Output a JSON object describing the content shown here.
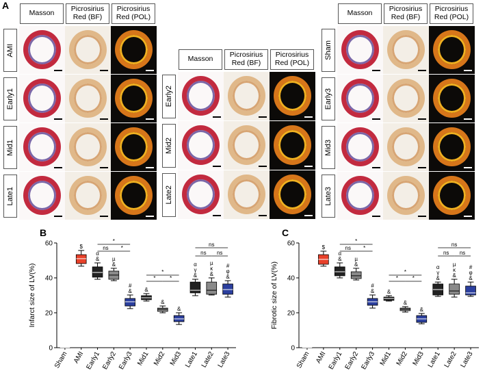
{
  "panel_a": {
    "label": "A",
    "groups": [
      {
        "columns": [
          "Masson",
          "Picrosirius Red (BF)",
          "Picrosirius Red (POL)"
        ],
        "rows": [
          "AMI",
          "Early1",
          "Mid1",
          "Late1"
        ]
      },
      {
        "columns": [
          "Masson",
          "Picrosirius Red (BF)",
          "Picrosirius Red (POL)"
        ],
        "rows": [
          "Early2",
          "Mid2",
          "Late2"
        ]
      },
      {
        "columns": [
          "Masson",
          "Picrosirius Red (BF)",
          "Picrosirius Red (POL)"
        ],
        "rows": [
          "Sham",
          "Early3",
          "Mid3",
          "Late3"
        ]
      }
    ]
  },
  "chart_data": [
    {
      "type": "box",
      "panel": "B",
      "ylabel": "Infarct size of LV(%)",
      "categories": [
        "Sham",
        "AMI",
        "Early1",
        "Early2",
        "Early3",
        "Mid1",
        "Mid2",
        "Mid3",
        "Late1",
        "Late2",
        "Late3"
      ],
      "colors": [
        "#000000",
        "#e8412a",
        "#222222",
        "#8a8a8a",
        "#2b3f9e",
        "#222222",
        "#8a8a8a",
        "#2b3f9e",
        "#222222",
        "#8a8a8a",
        "#2b3f9e"
      ],
      "boxes": [
        {
          "min": 0,
          "q1": 0,
          "median": 0,
          "q3": 0,
          "max": 0
        },
        {
          "min": 46.7,
          "q1": 48.2,
          "median": 51,
          "q3": 53.3,
          "max": 55.7
        },
        {
          "min": 39.2,
          "q1": 40.4,
          "median": 43.1,
          "q3": 46.3,
          "max": 48.6
        },
        {
          "min": 38.4,
          "q1": 39.2,
          "median": 41.6,
          "q3": 43.9,
          "max": 45.5
        },
        {
          "min": 22.4,
          "q1": 23.9,
          "median": 26.3,
          "q3": 28.2,
          "max": 30.2
        },
        {
          "min": 26.7,
          "q1": 27.5,
          "median": 28.6,
          "q3": 29.8,
          "max": 31
        },
        {
          "min": 20,
          "q1": 20.8,
          "median": 22,
          "q3": 22.7,
          "max": 23.9
        },
        {
          "min": 13.3,
          "q1": 14.9,
          "median": 16.5,
          "q3": 18.4,
          "max": 20
        },
        {
          "min": 29.8,
          "q1": 31.4,
          "median": 32.9,
          "q3": 37.6,
          "max": 39.2
        },
        {
          "min": 30.2,
          "q1": 30.6,
          "median": 32.9,
          "q3": 37.6,
          "max": 40
        },
        {
          "min": 29,
          "q1": 30.6,
          "median": 33.3,
          "q3": 36.5,
          "max": 38.4
        }
      ],
      "annotations": [
        [],
        [
          "$"
        ],
        [
          "α",
          "&"
        ],
        [
          "µ",
          "&"
        ],
        [
          "#",
          "&"
        ],
        [
          "&"
        ],
        [
          "&"
        ],
        [
          "&"
        ],
        [
          "α",
          "γ",
          "&"
        ],
        [
          "µ",
          "κ",
          "&"
        ],
        [
          "#",
          "φ",
          "&"
        ]
      ],
      "brackets": [
        "*",
        "ns",
        "*",
        "*",
        "*",
        "*",
        "ns",
        "ns",
        "ns"
      ],
      "ylim": [
        0,
        60
      ],
      "yticks": [
        0,
        20,
        40,
        60
      ]
    },
    {
      "type": "box",
      "panel": "C",
      "ylabel": "Fibrotic size of LV(%)",
      "categories": [
        "Sham",
        "AMI",
        "Early1",
        "Early2",
        "Early3",
        "Mid1",
        "Mid2",
        "Mid3",
        "Late1",
        "Late2",
        "Late3"
      ],
      "colors": [
        "#000000",
        "#e8412a",
        "#222222",
        "#8a8a8a",
        "#2b3f9e",
        "#222222",
        "#8a8a8a",
        "#2b3f9e",
        "#222222",
        "#8a8a8a",
        "#2b3f9e"
      ],
      "boxes": [
        {
          "min": 0,
          "q1": 0,
          "median": 0,
          "q3": 0,
          "max": 0
        },
        {
          "min": 46.7,
          "q1": 47.8,
          "median": 50.6,
          "q3": 53.3,
          "max": 55.3
        },
        {
          "min": 40,
          "q1": 41.2,
          "median": 43.5,
          "q3": 46.3,
          "max": 48.6
        },
        {
          "min": 38.8,
          "q1": 39.6,
          "median": 41.2,
          "q3": 43.5,
          "max": 45.5
        },
        {
          "min": 22.7,
          "q1": 24.3,
          "median": 26.3,
          "q3": 28.2,
          "max": 30.2
        },
        {
          "min": 26.7,
          "q1": 27.1,
          "median": 28.2,
          "q3": 29,
          "max": 29.8
        },
        {
          "min": 20.4,
          "q1": 21.2,
          "median": 22,
          "q3": 22.7,
          "max": 23.5
        },
        {
          "min": 13.7,
          "q1": 14.5,
          "median": 16.5,
          "q3": 18.4,
          "max": 19.6
        },
        {
          "min": 29.4,
          "q1": 30.2,
          "median": 33.3,
          "q3": 36.5,
          "max": 37.6
        },
        {
          "min": 29,
          "q1": 30.6,
          "median": 32.5,
          "q3": 36.5,
          "max": 39.2
        },
        {
          "min": 29.4,
          "q1": 30.2,
          "median": 31.4,
          "q3": 35.3,
          "max": 37.6
        }
      ],
      "annotations": [
        [],
        [
          "$"
        ],
        [
          "α",
          "&"
        ],
        [
          "µ",
          "&"
        ],
        [
          "#",
          "&"
        ],
        [
          "&"
        ],
        [
          "&"
        ],
        [
          "&"
        ],
        [
          "α",
          "γ",
          "&"
        ],
        [
          "µ",
          "κ",
          "&"
        ],
        [
          "#",
          "φ",
          "&"
        ]
      ],
      "brackets": [
        "*",
        "ns",
        "*",
        "*",
        "*",
        "*",
        "ns",
        "ns",
        "ns"
      ],
      "ylim": [
        0,
        60
      ],
      "yticks": [
        0,
        20,
        40,
        60
      ]
    }
  ]
}
